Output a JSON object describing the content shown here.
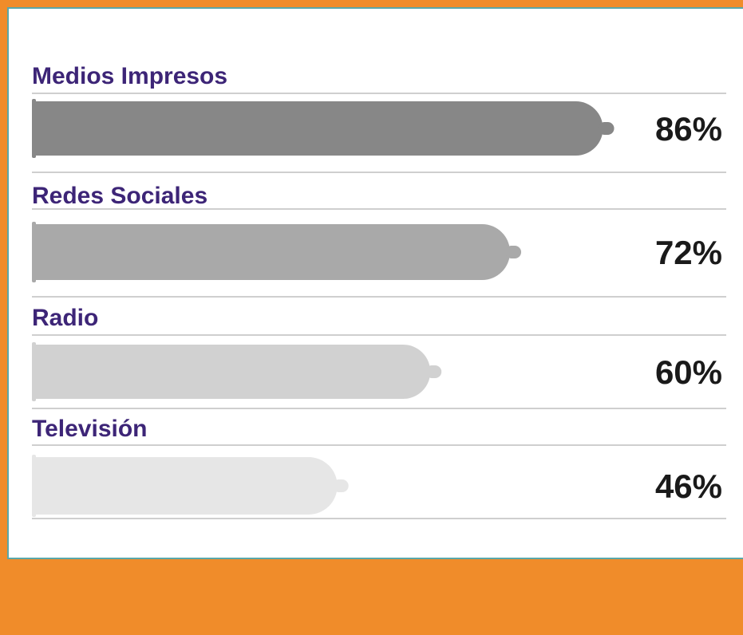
{
  "chart_data": {
    "type": "bar",
    "orientation": "horizontal",
    "categories": [
      "Medios Impresos",
      "Redes Sociales",
      "Radio",
      "Televisión"
    ],
    "values": [
      86,
      72,
      60,
      46
    ],
    "value_labels": [
      "86%",
      "72%",
      "60%",
      "46%"
    ],
    "colors": [
      "#878787",
      "#a9a9a9",
      "#d1d1d1",
      "#e6e6e6"
    ]
  }
}
